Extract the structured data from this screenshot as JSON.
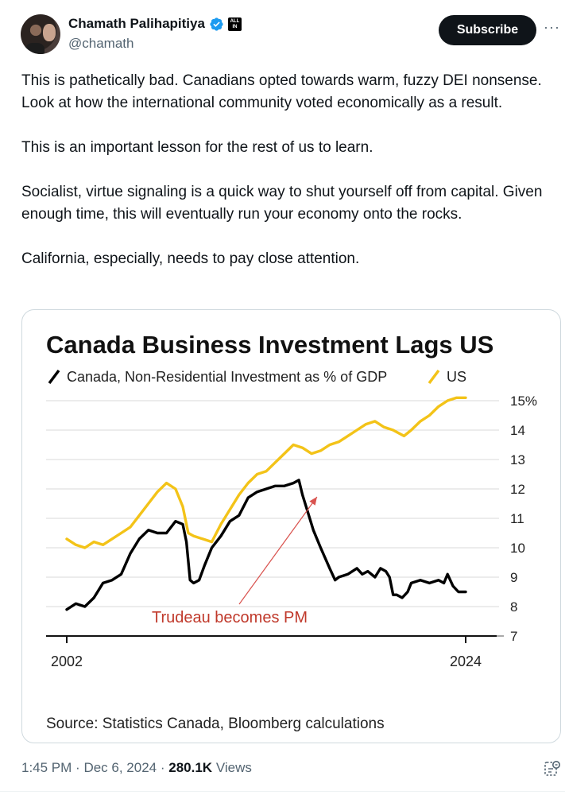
{
  "author": {
    "name": "Chamath Palihapitiya",
    "handle": "@chamath",
    "affiliate_badge_text": "ALL IN"
  },
  "actions": {
    "subscribe_label": "Subscribe",
    "more_label": "···"
  },
  "tweet": {
    "paragraphs": [
      "This is pathetically bad. Canadians  opted towards warm, fuzzy DEI nonsense. Look at how the international community voted economically as a result.",
      "This is an important lesson for the rest of us to learn.",
      "Socialist, virtue signaling is a quick way to shut yourself off from capital. Given enough time, this will eventually run your economy onto the rocks.",
      "California, especially, needs to pay close attention."
    ]
  },
  "footer": {
    "time": "1:45 PM",
    "date": "Dec 6, 2024",
    "views_count": "280.1K",
    "views_label": "Views"
  },
  "colors": {
    "us_line": "#f3c318",
    "canada_line": "#000000",
    "annotation": "#c0392b"
  },
  "chart_data": {
    "type": "line",
    "title": "Canada Business Investment Lags US",
    "source": "Source: Statistics Canada, Bloomberg calculations",
    "annotation": "Trudeau becomes PM",
    "annotation_point": {
      "x": 2015.8,
      "y": 12.0
    },
    "x_tick_labels": [
      "2002",
      "2024"
    ],
    "xlim": [
      2002,
      2024
    ],
    "ylim": [
      7,
      15
    ],
    "y_tick_labels": [
      "15%",
      "14",
      "13",
      "12",
      "11",
      "10",
      "9",
      "8",
      "7"
    ],
    "series": [
      {
        "name": "Canada, Non-Residential Investment as % of GDP",
        "legend_label": "Canada, Non-Residential Investment as % of GDP",
        "x": [
          2002.0,
          2002.5,
          2003.0,
          2003.5,
          2004.0,
          2004.5,
          2005.0,
          2005.5,
          2006.0,
          2006.5,
          2007.0,
          2007.5,
          2008.0,
          2008.4,
          2008.6,
          2008.8,
          2009.0,
          2009.3,
          2009.6,
          2010.0,
          2010.5,
          2011.0,
          2011.5,
          2012.0,
          2012.5,
          2013.0,
          2013.5,
          2014.0,
          2014.5,
          2014.8,
          2015.0,
          2015.3,
          2015.6,
          2016.0,
          2016.5,
          2016.8,
          2017.0,
          2017.5,
          2018.0,
          2018.3,
          2018.6,
          2019.0,
          2019.3,
          2019.6,
          2019.8,
          2020.0,
          2020.2,
          2020.5,
          2020.8,
          2021.0,
          2021.5,
          2022.0,
          2022.5,
          2022.8,
          2023.0,
          2023.3,
          2023.6,
          2024.0
        ],
        "y": [
          7.9,
          8.1,
          8.0,
          8.3,
          8.8,
          8.9,
          9.1,
          9.8,
          10.3,
          10.6,
          10.5,
          10.5,
          10.9,
          10.8,
          10.2,
          8.9,
          8.8,
          8.9,
          9.4,
          10.0,
          10.4,
          10.9,
          11.1,
          11.7,
          11.9,
          12.0,
          12.1,
          12.1,
          12.2,
          12.3,
          11.8,
          11.2,
          10.6,
          10.0,
          9.3,
          8.9,
          9.0,
          9.1,
          9.3,
          9.1,
          9.2,
          9.0,
          9.3,
          9.2,
          9.0,
          8.4,
          8.4,
          8.3,
          8.5,
          8.8,
          8.9,
          8.8,
          8.9,
          8.8,
          9.1,
          8.7,
          8.5,
          8.5
        ]
      },
      {
        "name": "US",
        "legend_label": "US",
        "x": [
          2002.0,
          2002.5,
          2003.0,
          2003.5,
          2004.0,
          2004.5,
          2005.0,
          2005.5,
          2006.0,
          2006.5,
          2007.0,
          2007.5,
          2008.0,
          2008.4,
          2008.7,
          2009.0,
          2009.5,
          2010.0,
          2010.5,
          2011.0,
          2011.5,
          2012.0,
          2012.5,
          2013.0,
          2013.5,
          2014.0,
          2014.5,
          2015.0,
          2015.5,
          2016.0,
          2016.5,
          2017.0,
          2017.5,
          2018.0,
          2018.5,
          2019.0,
          2019.5,
          2020.0,
          2020.3,
          2020.6,
          2021.0,
          2021.5,
          2022.0,
          2022.5,
          2023.0,
          2023.5,
          2024.0
        ],
        "y": [
          10.3,
          10.1,
          10.0,
          10.2,
          10.1,
          10.3,
          10.5,
          10.7,
          11.1,
          11.5,
          11.9,
          12.2,
          12.0,
          11.4,
          10.5,
          10.4,
          10.3,
          10.2,
          10.8,
          11.3,
          11.8,
          12.2,
          12.5,
          12.6,
          12.9,
          13.2,
          13.5,
          13.4,
          13.2,
          13.3,
          13.5,
          13.6,
          13.8,
          14.0,
          14.2,
          14.3,
          14.1,
          14.0,
          13.9,
          13.8,
          14.0,
          14.3,
          14.5,
          14.8,
          15.0,
          15.1,
          15.1
        ]
      }
    ]
  }
}
